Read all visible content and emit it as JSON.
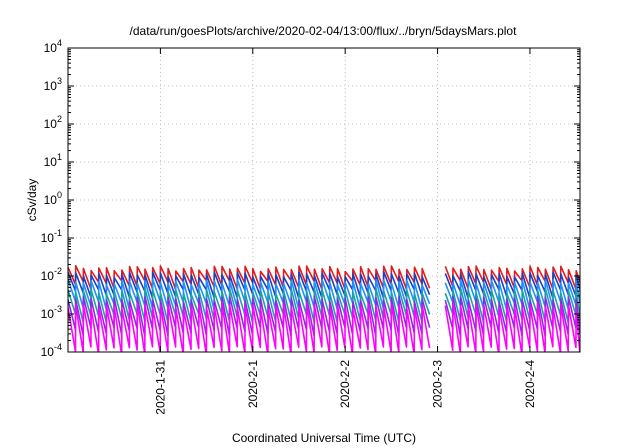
{
  "chart_data": {
    "type": "line",
    "title": "/data/run/goesPlots/archive/2020-02-04/13:00/flux/../bryn/5daysMars.plot",
    "xlabel": "Coordinated Universal Time (UTC)",
    "ylabel": "cSv/day",
    "yscale": "log",
    "ylim": [
      0.0001,
      10000
    ],
    "xlim": [
      "2020-01-30T00:00",
      "2020-02-04T13:00"
    ],
    "y_ticks": [
      {
        "value": 0.0001,
        "base": "10",
        "exp": "-4"
      },
      {
        "value": 0.001,
        "base": "10",
        "exp": "-3"
      },
      {
        "value": 0.01,
        "base": "10",
        "exp": "-2"
      },
      {
        "value": 0.1,
        "base": "10",
        "exp": "-1"
      },
      {
        "value": 1,
        "base": "10",
        "exp": "0"
      },
      {
        "value": 10,
        "base": "10",
        "exp": "1"
      },
      {
        "value": 100,
        "base": "10",
        "exp": "2"
      },
      {
        "value": 1000,
        "base": "10",
        "exp": "3"
      },
      {
        "value": 10000,
        "base": "10",
        "exp": "4"
      }
    ],
    "x_ticks": [
      {
        "value": "2020-01-31",
        "label": "2020-1-31"
      },
      {
        "value": "2020-02-01",
        "label": "2020-2-1"
      },
      {
        "value": "2020-02-02",
        "label": "2020-2-2"
      },
      {
        "value": "2020-02-03",
        "label": "2020-2-3"
      },
      {
        "value": "2020-02-04",
        "label": "2020-2-4"
      }
    ],
    "grid": true,
    "sawtooth_period_hours": 2,
    "gap_after": "2020-02-02T21:00",
    "gap_end": "2020-02-03T02:00",
    "series": [
      {
        "color": "#e41a1c",
        "peak": 0.016,
        "trough": 0.006
      },
      {
        "color": "#1f3fbf",
        "peak": 0.011,
        "trough": 0.0035
      },
      {
        "color": "#1e90ff",
        "peak": 0.007,
        "trough": 0.0017
      },
      {
        "color": "#1aa3a3",
        "peak": 0.004,
        "trough": 0.0008
      },
      {
        "color": "#8a2be2",
        "peak": 0.0025,
        "trough": 0.00035
      },
      {
        "color": "#ff00ff",
        "peak": 0.0016,
        "trough": 0.00011
      }
    ]
  }
}
